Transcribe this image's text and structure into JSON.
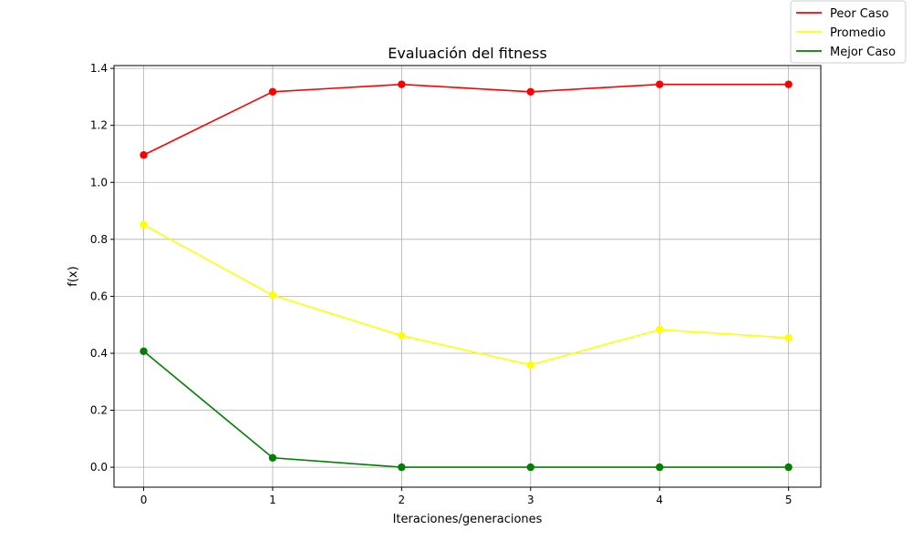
{
  "chart_data": {
    "type": "line",
    "title": "Evaluación del fitness",
    "xlabel": "Iteraciones/generaciones",
    "ylabel": "f(x)",
    "x": [
      0,
      1,
      2,
      3,
      4,
      5
    ],
    "xlim": [
      -0.23,
      5.25
    ],
    "ylim": [
      -0.07,
      1.41
    ],
    "xticks": [
      0,
      1,
      2,
      3,
      4,
      5
    ],
    "yticks": [
      0.0,
      0.2,
      0.4,
      0.6,
      0.8,
      1.0,
      1.2,
      1.4
    ],
    "grid": true,
    "legend_position": "top-right",
    "series": [
      {
        "name": "Peor Caso",
        "color": "#ff0000",
        "values": [
          1.096,
          1.318,
          1.344,
          1.318,
          1.344,
          1.344
        ]
      },
      {
        "name": "Promedio",
        "color": "#ffff00",
        "values": [
          0.851,
          0.604,
          0.462,
          0.359,
          0.483,
          0.454
        ]
      },
      {
        "name": "Mejor Caso",
        "color": "#008000",
        "values": [
          0.407,
          0.033,
          0.0,
          0.0,
          0.0,
          0.0
        ]
      }
    ]
  }
}
